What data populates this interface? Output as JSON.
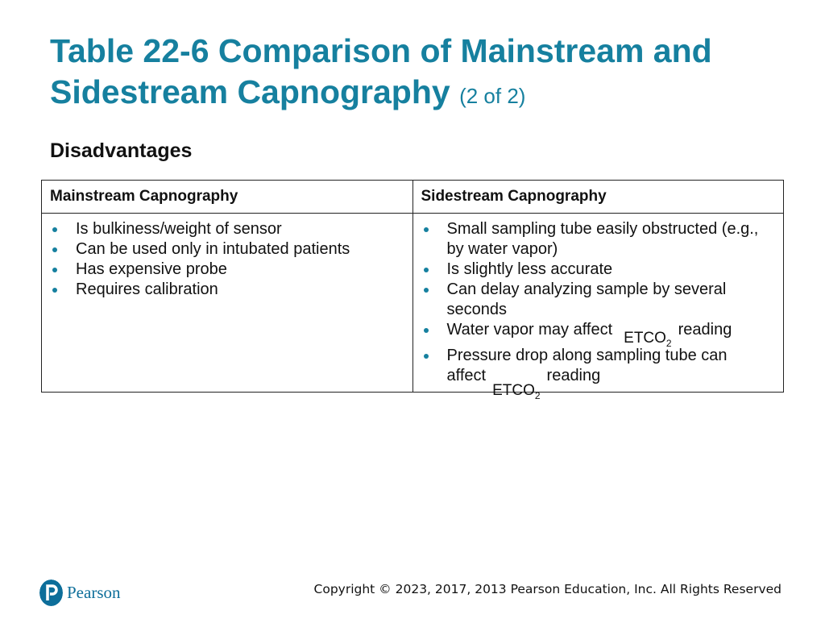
{
  "header": {
    "title": "Table 22-6 Comparison of Mainstream and Sidestream Capnography",
    "part": "(2 of 2)"
  },
  "section": "Disadvantages",
  "table": {
    "columns": [
      "Mainstream Capnography",
      "Sidestream Capnography"
    ],
    "cells": [
      [
        {
          "text": "Is bulkiness/weight of sensor"
        },
        {
          "text": "Can be used only in intubated patients"
        },
        {
          "text": "Has expensive probe"
        },
        {
          "text": "Requires calibration"
        }
      ],
      [
        {
          "text": "Small sampling tube easily obstructed (e.g., by water vapor)"
        },
        {
          "text": "Is slightly less accurate"
        },
        {
          "text": "Can delay analyzing sample by several seconds"
        },
        {
          "text": "Water vapor may affect",
          "formula": "ETCO",
          "subscript": "2",
          "after": "reading"
        },
        {
          "text": "Pressure drop along sampling tube can affect",
          "formula": "ETCO",
          "subscript": "2",
          "after": "reading"
        }
      ]
    ]
  },
  "footer": {
    "logo": "Pearson",
    "copyright": "Copyright © 2023, 2017, 2013 Pearson Education, Inc. All Rights Reserved"
  }
}
